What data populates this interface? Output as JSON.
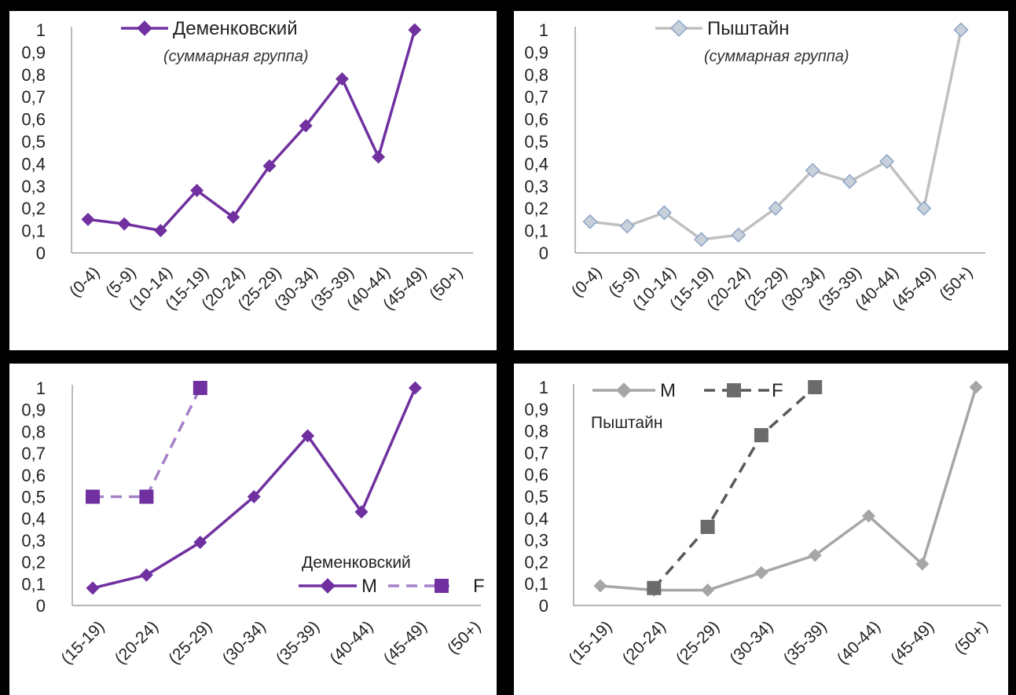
{
  "chart_data": [
    {
      "type": "line",
      "id": "dem-total",
      "categories": [
        "(0-4)",
        "(5-9)",
        "(10-14)",
        "(15-19)",
        "(20-24)",
        "(25-29)",
        "(30-34)",
        "(35-39)",
        "(40-44)",
        "(45-49)",
        "(50+)"
      ],
      "yticks": [
        "0",
        "0,1",
        "0,2",
        "0,3",
        "0,4",
        "0,5",
        "0,6",
        "0,7",
        "0,8",
        "0,9",
        "1"
      ],
      "ylim": [
        0,
        1
      ],
      "series": [
        {
          "name": "Деменковский",
          "values": [
            0.15,
            0.13,
            0.1,
            0.28,
            0.16,
            0.39,
            0.57,
            0.78,
            0.43,
            1.0,
            null
          ],
          "color": "#7030a0",
          "marker": "diamond",
          "dash": false
        }
      ],
      "subtitle": "(суммарная группа)",
      "legend_position": "top-center"
    },
    {
      "type": "line",
      "id": "pysh-total",
      "categories": [
        "(0-4)",
        "(5-9)",
        "(10-14)",
        "(15-19)",
        "(20-24)",
        "(25-29)",
        "(30-34)",
        "(35-39)",
        "(40-44)",
        "(45-49)",
        "(50+)"
      ],
      "yticks": [
        "0",
        "0,1",
        "0,2",
        "0,3",
        "0,4",
        "0,5",
        "0,6",
        "0,7",
        "0,8",
        "0,9",
        "1"
      ],
      "ylim": [
        0,
        1
      ],
      "series": [
        {
          "name": "Пыштайн",
          "values": [
            0.14,
            0.12,
            0.18,
            0.06,
            0.08,
            0.2,
            0.37,
            0.32,
            0.41,
            0.2,
            1.0
          ],
          "color": "#c0c0c0",
          "marker": "diamond",
          "marker_fill": "#c8d0dc",
          "marker_stroke": "#8ea5c6",
          "dash": false
        }
      ],
      "subtitle": "(суммарная группа)",
      "legend_position": "top-center"
    },
    {
      "type": "line",
      "id": "dem-mf",
      "categories": [
        "(15-19)",
        "(20-24)",
        "(25-29)",
        "(30-34)",
        "(35-39)",
        "(40-44)",
        "(45-49)",
        "(50+)"
      ],
      "yticks": [
        "0",
        "0,1",
        "0,2",
        "0,3",
        "0,4",
        "0,5",
        "0,6",
        "0,7",
        "0,8",
        "0,9",
        "1"
      ],
      "ylim": [
        0,
        1
      ],
      "series": [
        {
          "name": "M",
          "values": [
            0.08,
            0.14,
            0.29,
            0.5,
            0.78,
            0.43,
            1.0,
            null
          ],
          "color": "#7030a0",
          "marker": "diamond",
          "dash": false
        },
        {
          "name": "F",
          "values": [
            0.5,
            0.5,
            1.0,
            null,
            null,
            null,
            null,
            null
          ],
          "color": "#a580c8",
          "marker": "square",
          "marker_fill": "#7030a0",
          "dash": true
        }
      ],
      "group_label": "Деменковский",
      "legend_position": "bottom-right"
    },
    {
      "type": "line",
      "id": "pysh-mf",
      "categories": [
        "(15-19)",
        "(20-24)",
        "(25-29)",
        "(30-34)",
        "(35-39)",
        "(40-44)",
        "(45-49)",
        "(50+)"
      ],
      "yticks": [
        "0",
        "0,1",
        "0,2",
        "0,3",
        "0,4",
        "0,5",
        "0,6",
        "0,7",
        "0,8",
        "0,9",
        "1"
      ],
      "ylim": [
        0,
        1
      ],
      "series": [
        {
          "name": "M",
          "values": [
            0.09,
            0.07,
            0.07,
            0.15,
            0.23,
            0.41,
            0.19,
            1.0
          ],
          "color": "#a6a6a6",
          "marker": "diamond",
          "dash": false
        },
        {
          "name": "F",
          "values": [
            null,
            0.08,
            0.36,
            0.78,
            1.0,
            null,
            null,
            null
          ],
          "color": "#595959",
          "marker": "square",
          "marker_fill": "#6b6b6b",
          "dash": true
        }
      ],
      "group_label": "Пыштайн",
      "legend_position": "top-left"
    }
  ]
}
